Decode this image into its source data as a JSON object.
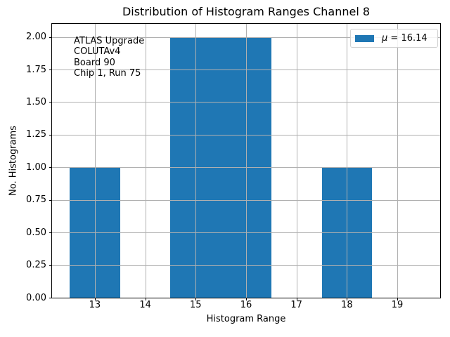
{
  "chart_data": {
    "type": "bar",
    "title": "Distribution of Histogram Ranges Channel 8",
    "xlabel": "Histogram Range",
    "ylabel": "No. Histograms",
    "bars": [
      {
        "x_start": 12.5,
        "x_end": 13.5,
        "count": 1
      },
      {
        "x_start": 14.5,
        "x_end": 16.5,
        "count": 2
      },
      {
        "x_start": 17.5,
        "x_end": 18.5,
        "count": 1
      }
    ],
    "xticks": [
      13,
      14,
      15,
      16,
      17,
      18,
      19
    ],
    "ytick_labels": [
      "0.00",
      "0.25",
      "0.50",
      "0.75",
      "1.00",
      "1.25",
      "1.50",
      "1.75",
      "2.00"
    ],
    "xlim": [
      12.15,
      19.85
    ],
    "ylim": [
      0,
      2.1
    ],
    "grid": true,
    "legend": {
      "position": "upper right",
      "symbol": "μ",
      "text": " = 16.14",
      "full_label": "μ = 16.14"
    },
    "annotation": "ATLAS Upgrade\nCOLUTAv4\n Board 90\nChip 1, Run 75",
    "colors": {
      "bar": "#1f77b4",
      "grid": "#b0b0b0",
      "spine": "#000000",
      "legend_border": "#d2d2d2"
    }
  }
}
